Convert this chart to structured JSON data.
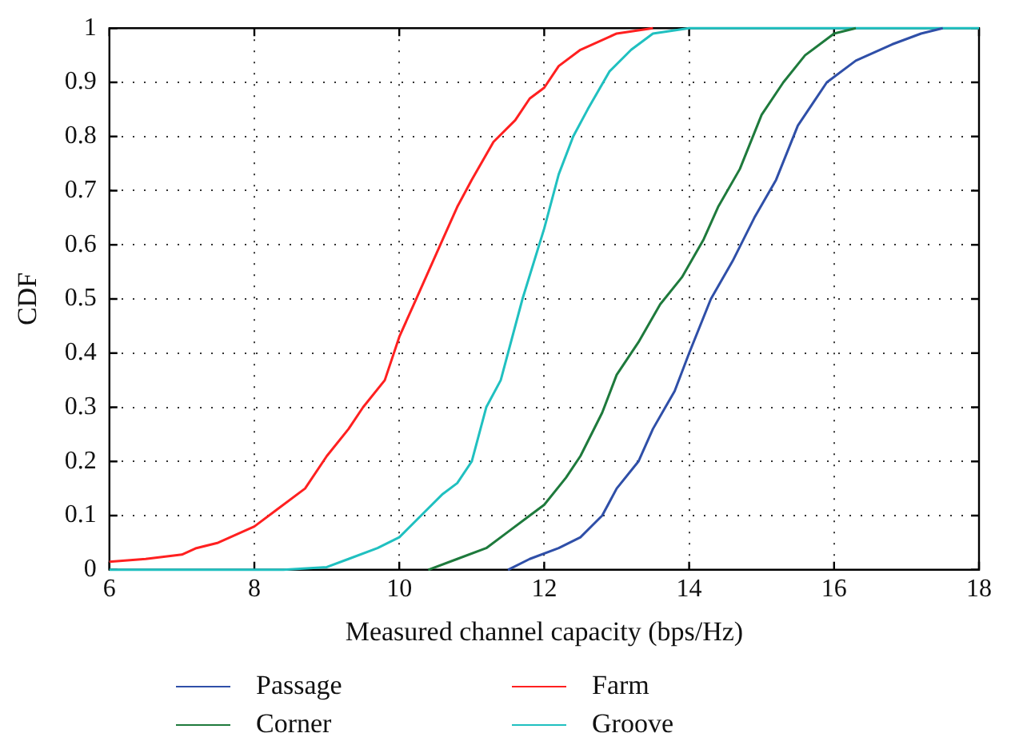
{
  "chart_data": {
    "type": "line",
    "xlabel": "Measured channel capacity (bps/Hz)",
    "ylabel": "CDF",
    "xlim": [
      6,
      18
    ],
    "xticks": [
      6,
      8,
      10,
      12,
      14,
      16,
      18
    ],
    "ylim": [
      0,
      1
    ],
    "yticks": [
      0,
      0.1,
      0.2,
      0.3,
      0.4,
      0.5,
      0.6,
      0.7,
      0.8,
      0.9,
      1
    ],
    "grid": true,
    "legend": "bottom",
    "marker": "none",
    "line_style": "solid",
    "series": [
      {
        "name": "Passage",
        "color": "#2f4fa8",
        "x": [
          11.5,
          11.8,
          12.2,
          12.5,
          12.8,
          13,
          13.3,
          13.5,
          13.8,
          14,
          14.3,
          14.6,
          14.9,
          15.2,
          15.5,
          15.9,
          16.3,
          16.8,
          17.2,
          17.5
        ],
        "values": [
          0,
          0.02,
          0.04,
          0.06,
          0.1,
          0.15,
          0.2,
          0.26,
          0.33,
          0.4,
          0.5,
          0.57,
          0.65,
          0.72,
          0.82,
          0.9,
          0.94,
          0.97,
          0.99,
          1
        ]
      },
      {
        "name": "Corner",
        "color": "#1e7a3c",
        "x": [
          10.4,
          10.8,
          11.2,
          11.5,
          11.8,
          12,
          12.3,
          12.5,
          12.8,
          13,
          13.3,
          13.6,
          13.9,
          14.2,
          14.4,
          14.7,
          15,
          15.3,
          15.6,
          16,
          16.3
        ],
        "values": [
          0,
          0.02,
          0.04,
          0.07,
          0.1,
          0.12,
          0.17,
          0.21,
          0.29,
          0.36,
          0.42,
          0.49,
          0.54,
          0.61,
          0.67,
          0.74,
          0.84,
          0.9,
          0.95,
          0.99,
          1
        ]
      },
      {
        "name": "Farm",
        "color": "#ff2020",
        "x": [
          6,
          6.5,
          7,
          7.2,
          7.5,
          8,
          8.3,
          8.7,
          9,
          9.3,
          9.5,
          9.8,
          10,
          10.2,
          10.4,
          10.6,
          10.8,
          11,
          11.3,
          11.6,
          11.8,
          12,
          12.2,
          12.5,
          13,
          13.5
        ],
        "values": [
          0.015,
          0.02,
          0.028,
          0.04,
          0.05,
          0.08,
          0.11,
          0.15,
          0.21,
          0.26,
          0.3,
          0.35,
          0.43,
          0.49,
          0.55,
          0.61,
          0.67,
          0.72,
          0.79,
          0.83,
          0.87,
          0.89,
          0.93,
          0.96,
          0.99,
          1
        ]
      },
      {
        "name": "Groove",
        "color": "#20c0c0",
        "x": [
          6,
          8.4,
          9,
          9.3,
          9.7,
          10,
          10.3,
          10.6,
          10.8,
          11,
          11.2,
          11.4,
          11.7,
          12,
          12.2,
          12.4,
          12.6,
          12.9,
          13.2,
          13.5,
          14,
          18
        ],
        "values": [
          0,
          0,
          0.005,
          0.02,
          0.04,
          0.06,
          0.1,
          0.14,
          0.16,
          0.2,
          0.3,
          0.35,
          0.5,
          0.63,
          0.73,
          0.8,
          0.85,
          0.92,
          0.96,
          0.99,
          1,
          1
        ]
      }
    ]
  }
}
